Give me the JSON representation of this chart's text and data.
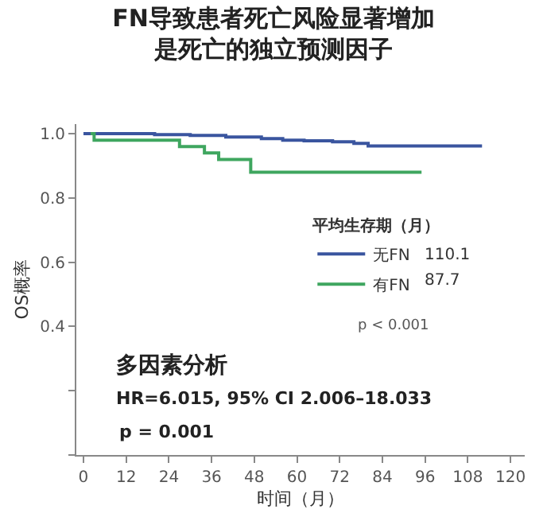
{
  "chart_data": {
    "type": "step",
    "title": "FN导致患者死亡风险显著增加",
    "subtitle": "是死亡的独立预测因子",
    "xlabel": "时间（月）",
    "ylabel": "OS概率",
    "legend_title": "平均生存期（月）",
    "series": [
      {
        "name": "无FN",
        "color": "#3a559f",
        "x": [
          0,
          10,
          20,
          30,
          40,
          50,
          56,
          62,
          70,
          76,
          80,
          90,
          100,
          112
        ],
        "values": [
          1.0,
          1.0,
          0.997,
          0.995,
          0.99,
          0.985,
          0.98,
          0.978,
          0.975,
          0.97,
          0.962,
          0.962,
          0.962,
          0.962
        ]
      },
      {
        "name": "有FN",
        "color": "#3fa65f",
        "x": [
          2,
          3,
          27,
          34,
          38,
          47,
          95
        ],
        "values": [
          1.0,
          0.98,
          0.96,
          0.94,
          0.92,
          0.88,
          0.88
        ]
      }
    ],
    "annotations": [
      "110.1",
      "87.7",
      "p < 0.001",
      "多因素分析",
      "HR=6.015, 95% CI 2.006–18.033",
      "p = 0.001"
    ],
    "xlim": [
      -2,
      124
    ],
    "xticks": [
      0,
      12,
      24,
      36,
      48,
      60,
      72,
      84,
      96,
      108,
      120
    ],
    "ylim": [
      0,
      1.03
    ],
    "yticks": [
      {
        "value": 0,
        "label": null
      },
      {
        "value": 0.2,
        "label": null
      },
      0.4,
      0.6,
      0.8,
      {
        "value": 1.0,
        "label": "1.0"
      }
    ],
    "legend": "right",
    "line_style": "solid"
  }
}
